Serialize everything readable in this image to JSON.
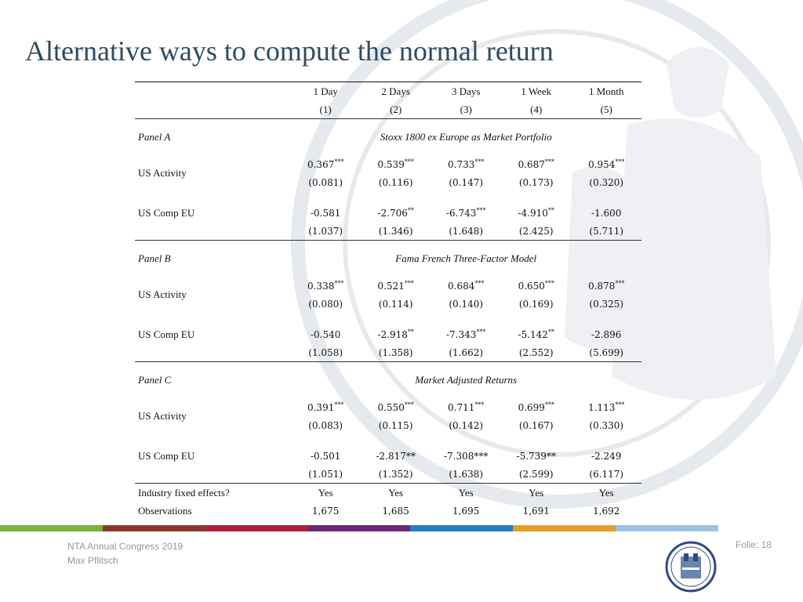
{
  "title": "Alternative ways to compute the normal return",
  "columns": [
    {
      "label": "1 Day",
      "num": "(1)"
    },
    {
      "label": "2 Days",
      "num": "(2)"
    },
    {
      "label": "3 Days",
      "num": "(3)"
    },
    {
      "label": "1 Week",
      "num": "(4)"
    },
    {
      "label": "1 Month",
      "num": "(5)"
    }
  ],
  "panels": {
    "a": {
      "label": "Panel A",
      "title": "Stoxx 1800 ex Europe as Market Portfolio",
      "activity": {
        "label": "US Activity",
        "coef": [
          "0.367",
          "0.539",
          "0.733",
          "0.687",
          "0.954"
        ],
        "stars": [
          "***",
          "***",
          "***",
          "***",
          "***"
        ],
        "se": [
          "(0.081)",
          "(0.116)",
          "(0.147)",
          "(0.173)",
          "(0.320)"
        ]
      },
      "comp": {
        "label": "US Comp EU",
        "coef": [
          "-0.581",
          "-2.706",
          "-6.743",
          "-4.910",
          "-1.600"
        ],
        "stars": [
          "",
          "**",
          "***",
          "**",
          ""
        ],
        "se": [
          "(1.037)",
          "(1.346)",
          "(1.648)",
          "(2.425)",
          "(5.711)"
        ]
      }
    },
    "b": {
      "label": "Panel B",
      "title": "Fama French Three-Factor Model",
      "activity": {
        "label": "US Activity",
        "coef": [
          "0.338",
          "0.521",
          "0.684",
          "0.650",
          "0.878"
        ],
        "stars": [
          "***",
          "***",
          "***",
          "***",
          "***"
        ],
        "se": [
          "(0.080)",
          "(0.114)",
          "(0.140)",
          "(0.169)",
          "(0.325)"
        ]
      },
      "comp": {
        "label": "US Comp EU",
        "coef": [
          "-0.540",
          "-2.918",
          "-7.343",
          "-5.142",
          "-2.896"
        ],
        "stars": [
          "",
          "**",
          "***",
          "**",
          ""
        ],
        "se": [
          "(1.058)",
          "(1.358)",
          "(1.662)",
          "(2.552)",
          "(5.699)"
        ]
      }
    },
    "c": {
      "label": "Panel C",
      "title": "Market Adjusted Returns",
      "activity": {
        "label": "US Activity",
        "coef": [
          "0.391",
          "0.550",
          "0.711",
          "0.699",
          "1.113"
        ],
        "stars": [
          "***",
          "***",
          "***",
          "***",
          "***"
        ],
        "se": [
          "(0.083)",
          "(0.115)",
          "(0.142)",
          "(0.167)",
          "(0.330)"
        ]
      },
      "comp": {
        "label": "US Comp EU",
        "coef": [
          "-0.501",
          "-2.817**",
          "-7.308***",
          "-5.739**",
          "-2.249"
        ],
        "stars": [
          "",
          "",
          "",
          "",
          ""
        ],
        "se": [
          "(1.051)",
          "(1.352)",
          "(1.638)",
          "(2.599)",
          "(6.117)"
        ]
      }
    }
  },
  "fixed_effects": {
    "label": "Industry fixed effects?",
    "values": [
      "Yes",
      "Yes",
      "Yes",
      "Yes",
      "Yes"
    ]
  },
  "observations": {
    "label": "Observations",
    "values": [
      "1,675",
      "1,685",
      "1,695",
      "1,691",
      "1,692"
    ]
  },
  "footer": {
    "event": "NTA Annual Congress 2019",
    "author": "Max Pflitsch",
    "slide": "Folie: 18"
  },
  "colors": {
    "title": "#2f4a5e",
    "bar": [
      "#7ab23a",
      "#8b3a2a",
      "#b01e3c",
      "#6a2a74",
      "#1f7fc0",
      "#e0a12a",
      "#9dc3e6"
    ]
  }
}
